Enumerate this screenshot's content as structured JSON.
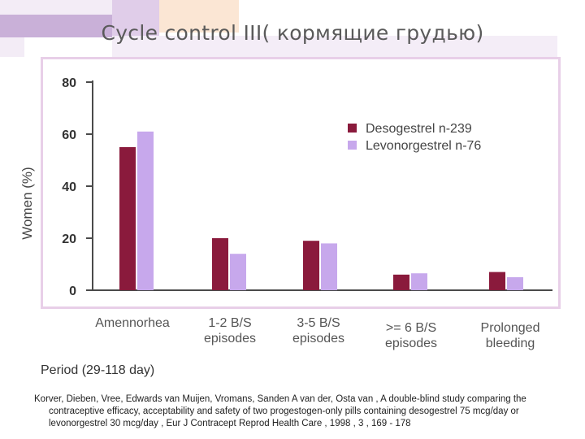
{
  "page": {
    "title": "Cycle control III( кормящие грудью)",
    "period_note": "Period (29-118 day)",
    "citation": {
      "line1": "Korver, Dieben, Vree, Edwards van Muijen, Vromans, Sanden A van der, Osta van , A double-blind study comparing the",
      "line2": "contraceptive efficacy, acceptability and safety of two progestogen-only pills containing desogestrel 75 mcg/day or",
      "line3": "levonorgestrel 30 mcg/day , Eur J Contracept Reprod Health Care , 1998 , 3 , 169 - 178"
    }
  },
  "colors": {
    "desogestrel": "#8a1a3c",
    "levonorgestrel": "#c7a8ec",
    "frame_border": "#e8cfe8",
    "axis": "#4a4a4a"
  },
  "chart_data": {
    "type": "bar",
    "ylabel": "Women (%)",
    "ylim": [
      0,
      80
    ],
    "yticks": [
      "0",
      "20",
      "40",
      "60",
      "80"
    ],
    "grid": false,
    "legend_position": "top-right",
    "categories": [
      "Amennorhea",
      "1-2 B/S episodes",
      "3-5 B/S episodes",
      ">= 6 B/S episodes",
      "Prolonged bleeding"
    ],
    "category_lines": [
      [
        "Amennorhea"
      ],
      [
        "1-2 B/S",
        "episodes"
      ],
      [
        "3-5 B/S",
        "episodes"
      ],
      [
        ">= 6 B/S",
        "episodes"
      ],
      [
        "Prolonged",
        "bleeding"
      ]
    ],
    "series": [
      {
        "name": "Desogestrel n-239",
        "values": [
          55,
          20,
          19,
          6,
          7
        ]
      },
      {
        "name": "Levonorgestrel n-76",
        "values": [
          61,
          14,
          18,
          6.5,
          5
        ]
      }
    ]
  }
}
